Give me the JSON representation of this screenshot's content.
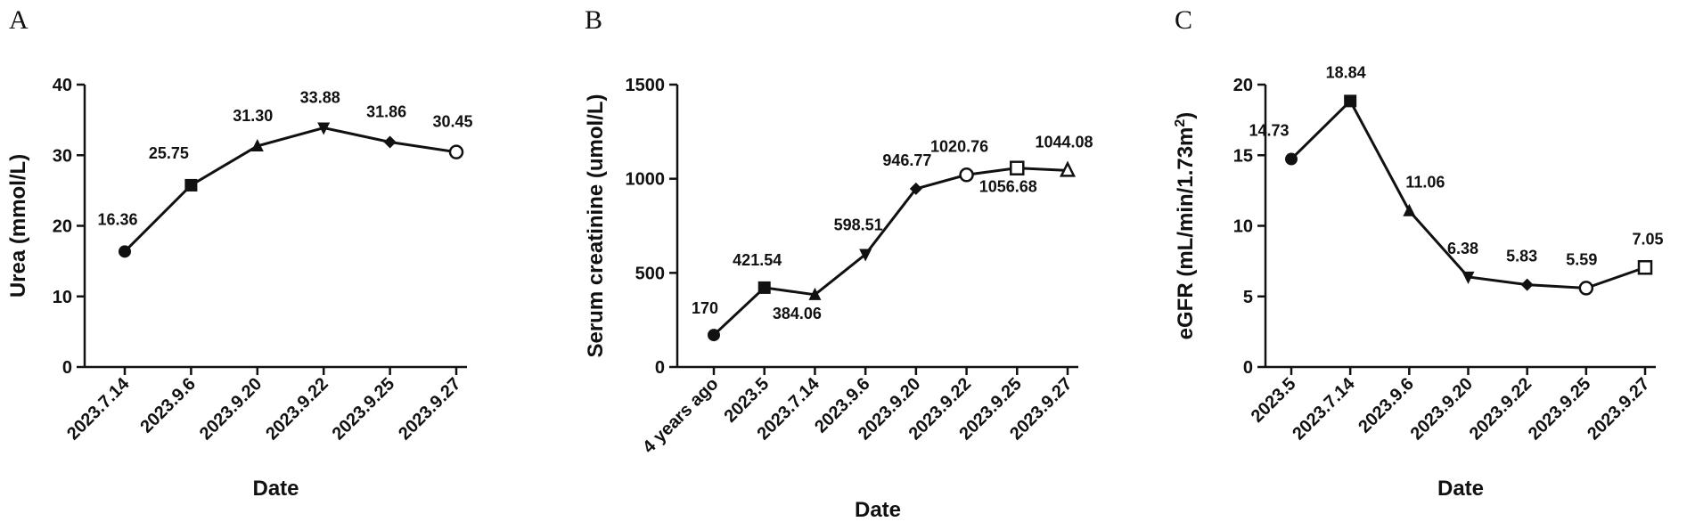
{
  "chart_data": [
    {
      "panel": "A",
      "type": "line",
      "xlabel": "Date",
      "ylabel": "Urea  (mmol/L)",
      "categories": [
        "2023.7.14",
        "2023.9.6",
        "2023.9.20",
        "2023.9.22",
        "2023.9.25",
        "2023.9.27"
      ],
      "values": [
        16.36,
        25.75,
        31.3,
        33.88,
        31.86,
        30.45
      ],
      "value_labels": [
        "16.36",
        "25.75",
        "31.30",
        "33.88",
        "31.86",
        "30.45"
      ],
      "markers": [
        "circle",
        "square",
        "triangle-up",
        "triangle-down",
        "diamond",
        "circle-open"
      ],
      "yticks": [
        0,
        10,
        20,
        30,
        40
      ],
      "ylim": [
        0,
        40
      ],
      "grid": false
    },
    {
      "panel": "B",
      "type": "line",
      "xlabel": "Date",
      "ylabel": "Serum creatinine  (umol/L)",
      "categories": [
        "4 years ago",
        "2023.5",
        "2023.7.14",
        "2023.9.6",
        "2023.9.20",
        "2023.9.22",
        "2023.9.25",
        "2023.9.27"
      ],
      "values": [
        170,
        421.54,
        384.06,
        598.51,
        946.77,
        1020.76,
        1056.68,
        1044.08
      ],
      "value_labels": [
        "170",
        "421.54",
        "384.06",
        "598.51",
        "946.77",
        "1020.76",
        "1056.68",
        "1044.08"
      ],
      "markers": [
        "circle",
        "square",
        "triangle-up",
        "triangle-down",
        "diamond",
        "circle-open",
        "square-open",
        "triangle-open"
      ],
      "yticks": [
        0,
        500,
        1000,
        1500
      ],
      "ylim": [
        0,
        1500
      ],
      "grid": false
    },
    {
      "panel": "C",
      "type": "line",
      "xlabel": "Date",
      "ylabel": "eGFR  (mL/min/1.73m",
      "ylabel_superscript": "2",
      "ylabel_suffix": ")",
      "categories": [
        "2023.5",
        "2023.7.14",
        "2023.9.6",
        "2023.9.20",
        "2023.9.22",
        "2023.9.25",
        "2023.9.27"
      ],
      "values": [
        14.73,
        18.84,
        11.06,
        6.38,
        5.83,
        5.59,
        7.05
      ],
      "value_labels": [
        "14.73",
        "18.84",
        "11.06",
        "6.38",
        "5.83",
        "5.59",
        "7.05"
      ],
      "markers": [
        "circle",
        "square",
        "triangle-up",
        "triangle-down",
        "diamond",
        "circle-open",
        "square-open"
      ],
      "yticks": [
        0,
        5,
        10,
        15,
        20
      ],
      "ylim": [
        0,
        20
      ],
      "grid": false
    }
  ]
}
